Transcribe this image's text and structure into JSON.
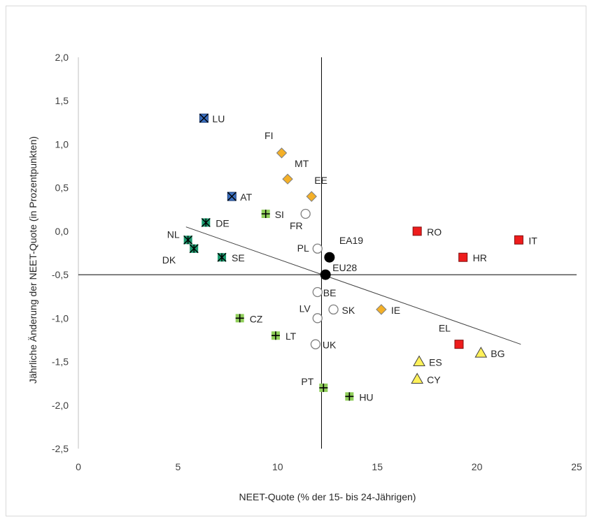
{
  "chart_data": {
    "type": "scatter",
    "title": "",
    "xlabel": "NEET-Quote (% der 15- bis 24-Jährigen)",
    "ylabel": "Jährliche Änderung der NEET-Quote (in Prozentpunkten)",
    "xlim": [
      0,
      25
    ],
    "ylim": [
      -2.5,
      2.0
    ],
    "x_ticks": [
      "0",
      "5",
      "10",
      "15",
      "20",
      "25"
    ],
    "y_ticks": [
      "2,0",
      "1,5",
      "1,0",
      "0,5",
      "0,0",
      "-0,5",
      "-1,0",
      "-1,5",
      "-2,0",
      "-2,5"
    ],
    "reference_lines": {
      "x": 12.2,
      "y": -0.5
    },
    "trend_line": {
      "x": [
        5.4,
        22.2
      ],
      "y": [
        0.05,
        -1.3
      ]
    },
    "marker_colors": {
      "blue_x": "#3a6fc0",
      "orange_diamond": "#f4b028",
      "green_asterisk": "#1a9a6e",
      "green_plus": "#8fce5a",
      "red_square": "#ee1c1c",
      "yellow_triangle": "#fff15a",
      "open_circle": "#ffffff",
      "black_circle": "#000000"
    },
    "series": [
      {
        "group": "blue_x",
        "points": [
          {
            "label": "LU",
            "x": 6.3,
            "y": 1.3
          },
          {
            "label": "AT",
            "x": 7.7,
            "y": 0.4
          }
        ]
      },
      {
        "group": "orange_diamond",
        "points": [
          {
            "label": "FI",
            "x": 10.2,
            "y": 0.9
          },
          {
            "label": "MT",
            "x": 10.5,
            "y": 0.6
          },
          {
            "label": "EE",
            "x": 11.7,
            "y": 0.4
          },
          {
            "label": "IE",
            "x": 15.2,
            "y": -0.9
          }
        ]
      },
      {
        "group": "green_asterisk",
        "points": [
          {
            "label": "DE",
            "x": 6.4,
            "y": 0.1
          },
          {
            "label": "NL",
            "x": 5.5,
            "y": -0.1
          },
          {
            "label": "DK",
            "x": 5.8,
            "y": -0.2
          },
          {
            "label": "SE",
            "x": 7.2,
            "y": -0.3
          }
        ]
      },
      {
        "group": "green_plus",
        "points": [
          {
            "label": "SI",
            "x": 9.4,
            "y": 0.2
          },
          {
            "label": "CZ",
            "x": 8.1,
            "y": -1.0
          },
          {
            "label": "LT",
            "x": 9.9,
            "y": -1.2
          },
          {
            "label": "PT",
            "x": 12.3,
            "y": -1.8
          },
          {
            "label": "HU",
            "x": 13.6,
            "y": -1.9
          }
        ]
      },
      {
        "group": "red_square",
        "points": [
          {
            "label": "RO",
            "x": 17.0,
            "y": 0.0
          },
          {
            "label": "IT",
            "x": 22.1,
            "y": -0.1
          },
          {
            "label": "HR",
            "x": 19.3,
            "y": -0.3
          },
          {
            "label": "EL",
            "x": 19.1,
            "y": -1.3
          }
        ]
      },
      {
        "group": "yellow_triangle",
        "points": [
          {
            "label": "BG",
            "x": 20.2,
            "y": -1.4
          },
          {
            "label": "ES",
            "x": 17.1,
            "y": -1.5
          },
          {
            "label": "CY",
            "x": 17.0,
            "y": -1.7
          }
        ]
      },
      {
        "group": "open_circle",
        "points": [
          {
            "label": "FR",
            "x": 11.4,
            "y": 0.2
          },
          {
            "label": "PL",
            "x": 12.0,
            "y": -0.2
          },
          {
            "label": "BE",
            "x": 12.0,
            "y": -0.7
          },
          {
            "label": "SK",
            "x": 12.8,
            "y": -0.9
          },
          {
            "label": "LV",
            "x": 12.0,
            "y": -1.0
          },
          {
            "label": "UK",
            "x": 11.9,
            "y": -1.3
          }
        ]
      },
      {
        "group": "black_circle",
        "points": [
          {
            "label": "EA19",
            "x": 12.6,
            "y": -0.3
          },
          {
            "label": "EU28",
            "x": 12.4,
            "y": -0.5
          }
        ]
      }
    ]
  }
}
